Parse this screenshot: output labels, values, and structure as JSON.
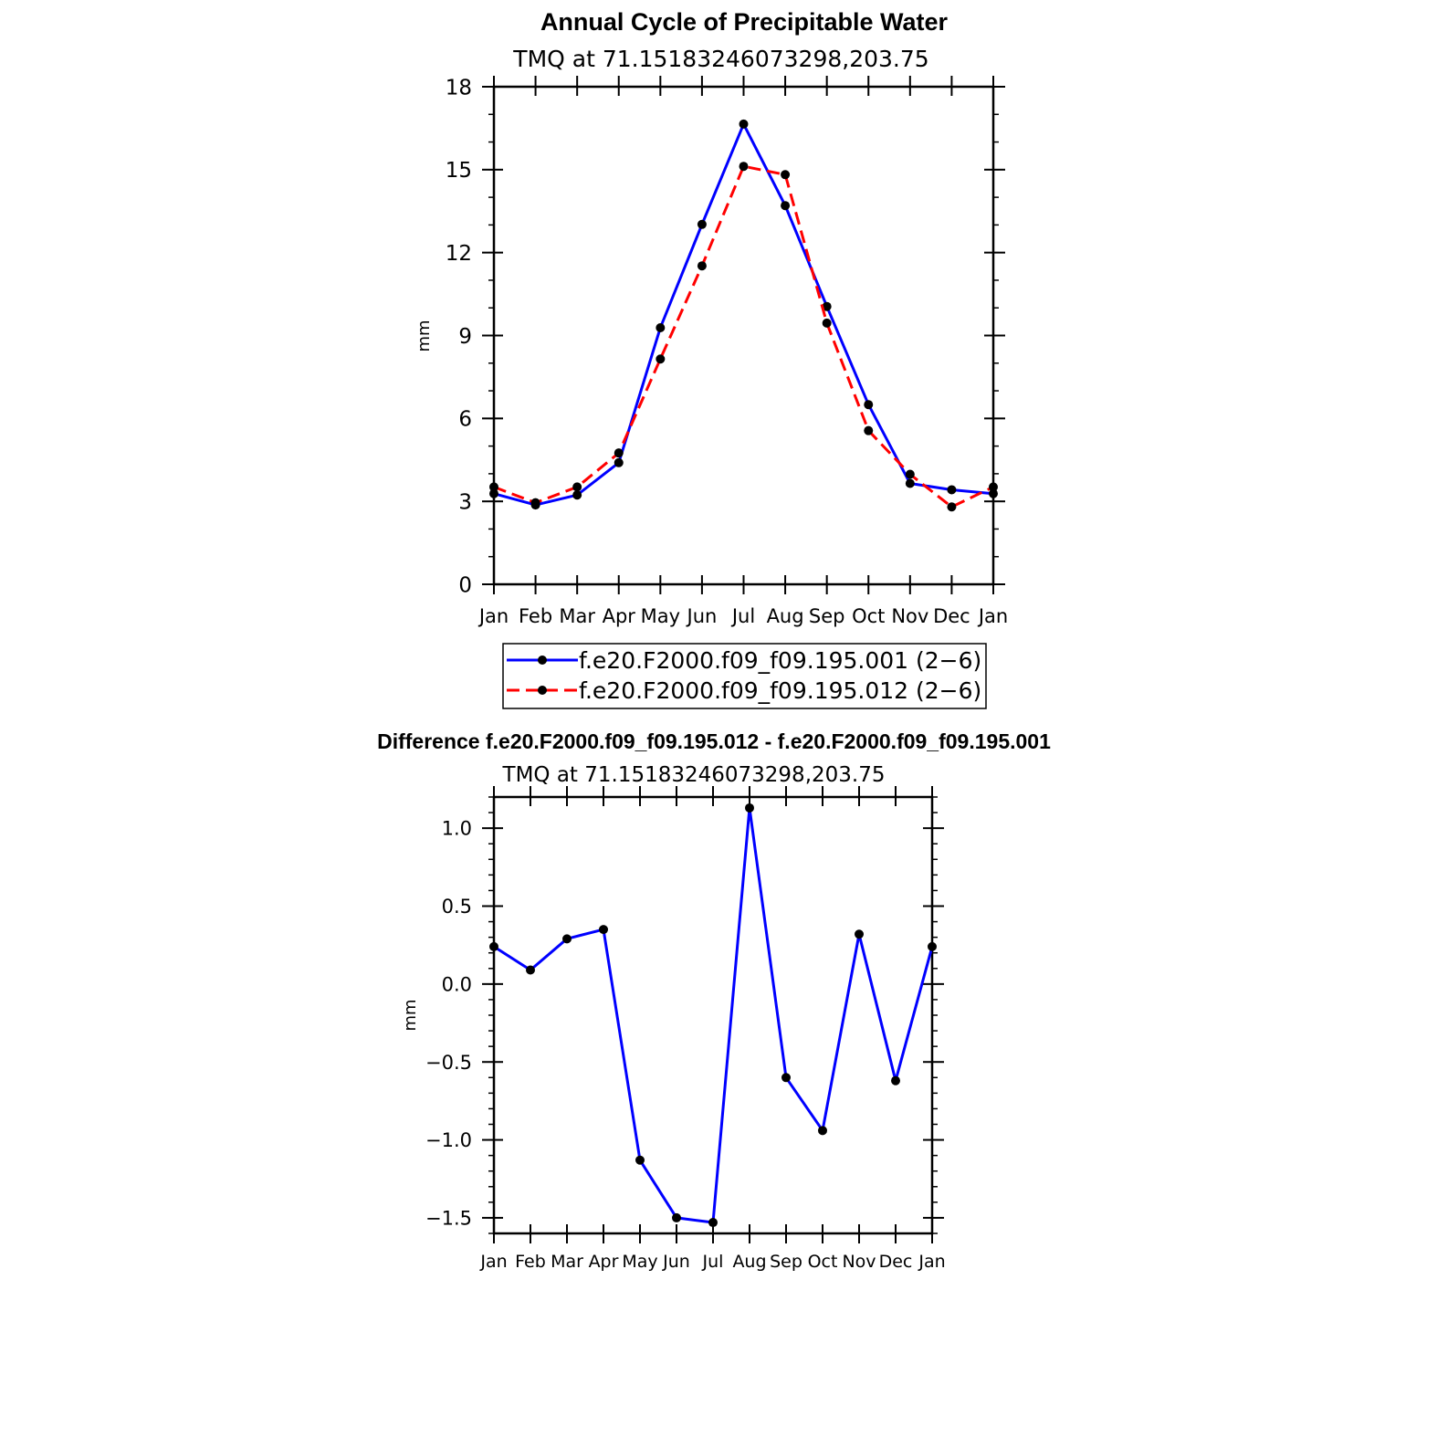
{
  "chart_data": [
    {
      "type": "line",
      "title": "Annual Cycle of Precipitable Water",
      "subtitle": "TMQ at 71.15183246073298,203.75",
      "xlabel": "",
      "ylabel": "mm",
      "categories": [
        "Jan",
        "Feb",
        "Mar",
        "Apr",
        "May",
        "Jun",
        "Jul",
        "Aug",
        "Sep",
        "Oct",
        "Nov",
        "Dec",
        "Jan"
      ],
      "ylim": [
        0,
        18
      ],
      "yticks": [
        0,
        3,
        6,
        9,
        12,
        15,
        18
      ],
      "ytick_labels": [
        "0",
        "3",
        "6",
        "9",
        "12",
        "15",
        "18"
      ],
      "grid": false,
      "legend_position": "bottom",
      "series": [
        {
          "name": "f.e20.F2000.f09_f09.195.001 (2−6)",
          "color": "#0000ff",
          "dash": "solid",
          "marker": "circle",
          "values": [
            3.28,
            2.87,
            3.23,
            4.4,
            9.28,
            13.02,
            16.65,
            13.7,
            10.05,
            6.5,
            3.65,
            3.42,
            3.28
          ]
        },
        {
          "name": "f.e20.F2000.f09_f09.195.012 (2−6)",
          "color": "#ff0000",
          "dash": "dashed",
          "marker": "circle",
          "values": [
            3.52,
            2.95,
            3.52,
            4.75,
            8.15,
            11.52,
            15.12,
            14.82,
            9.45,
            5.56,
            3.98,
            2.8,
            3.52
          ]
        }
      ]
    },
    {
      "type": "line",
      "title": "Difference f.e20.F2000.f09_f09.195.012 - f.e20.F2000.f09_f09.195.001",
      "subtitle": "TMQ at 71.15183246073298,203.75",
      "xlabel": "",
      "ylabel": "mm",
      "categories": [
        "Jan",
        "Feb",
        "Mar",
        "Apr",
        "May",
        "Jun",
        "Jul",
        "Aug",
        "Sep",
        "Oct",
        "Nov",
        "Dec",
        "Jan"
      ],
      "ylim": [
        -1.6,
        1.2
      ],
      "yticks": [
        -1.5,
        -1.0,
        -0.5,
        0.0,
        0.5,
        1.0
      ],
      "ytick_labels": [
        "−1.5",
        "−1.0",
        "−0.5",
        "0.0",
        "0.5",
        "1.0"
      ],
      "grid": false,
      "series": [
        {
          "color": "#0000ff",
          "dash": "solid",
          "marker": "circle",
          "values": [
            0.24,
            0.09,
            0.29,
            0.35,
            -1.13,
            -1.5,
            -1.53,
            1.13,
            -0.6,
            -0.94,
            0.32,
            -0.62,
            0.24
          ]
        }
      ]
    }
  ]
}
